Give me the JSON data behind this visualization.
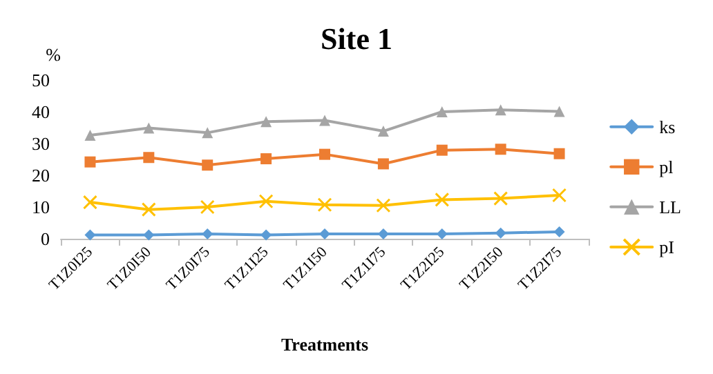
{
  "chart_data": {
    "type": "line",
    "title": "Site 1",
    "xlabel": "Treatments",
    "ylabel": "%",
    "categories": [
      "T1Z0I25",
      "T1Z0I50",
      "T1Z0I75",
      "T1Z1I25",
      "T1Z1I50",
      "T1Z1I75",
      "T1Z2I25",
      "T1Z2I50",
      "T1Z2I75"
    ],
    "series": [
      {
        "name": "ks",
        "color": "#5b9bd5",
        "marker": "diamond",
        "values": [
          1.2,
          1.2,
          1.5,
          1.2,
          1.5,
          1.5,
          1.5,
          1.8,
          2.2
        ]
      },
      {
        "name": "pl",
        "color": "#ed7d31",
        "marker": "square",
        "values": [
          24.2,
          25.6,
          23.2,
          25.2,
          26.6,
          23.6,
          27.9,
          28.2,
          26.8
        ]
      },
      {
        "name": "LL",
        "color": "#a5a5a5",
        "marker": "triangle",
        "values": [
          32.6,
          34.9,
          33.4,
          36.9,
          37.3,
          33.9,
          40.0,
          40.6,
          40.1
        ]
      },
      {
        "name": "pI",
        "color": "#ffc000",
        "marker": "cross",
        "values": [
          11.5,
          9.2,
          10.0,
          11.8,
          10.7,
          10.5,
          12.3,
          12.7,
          13.7
        ]
      }
    ],
    "ylim": [
      0,
      50
    ],
    "yticks": [
      0,
      10,
      20,
      30,
      40,
      50
    ],
    "grid": false,
    "legend": "right"
  }
}
